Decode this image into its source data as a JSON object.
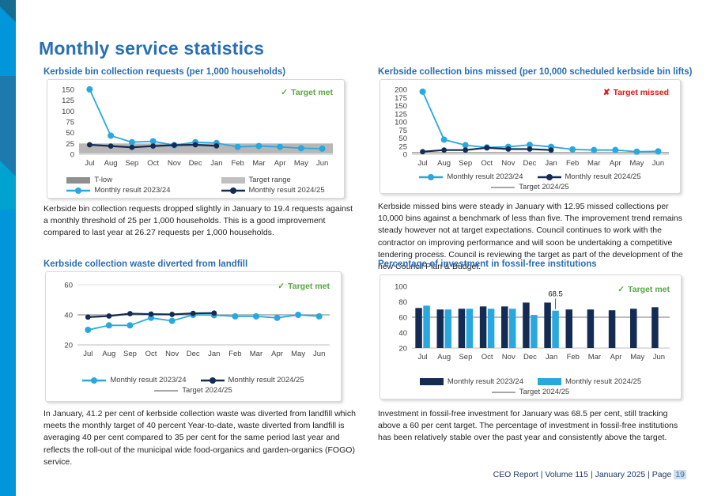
{
  "page": {
    "title": "Monthly service statistics",
    "footer_label": "CEO Report | Volume 115 | January 2025 | Page",
    "footer_page": "19"
  },
  "colors": {
    "heading_blue": "#2a6eb5",
    "series_2023_24": "#29a8e0",
    "series_2024_25": "#142c54",
    "target_gray": "#a6a6a6",
    "target_range_gray": "#b7b7b7",
    "t_low_gray": "#8f8f8f",
    "target_met_green": "#5ba644",
    "target_missed_red": "#e81313",
    "left_band_blue": "#0096d9"
  },
  "chart_data": [
    {
      "id": "kerbside-requests",
      "type": "line",
      "title": "Kerbside bin collection requests (per 1,000 households)",
      "status": {
        "icon": "✓",
        "label": "Target met",
        "type": "met"
      },
      "categories": [
        "Jul",
        "Aug",
        "Sep",
        "Oct",
        "Nov",
        "Dec",
        "Jan",
        "Feb",
        "Mar",
        "Apr",
        "May",
        "Jun"
      ],
      "series": [
        {
          "name": "Monthly result 2023/24",
          "color": "#29a8e0",
          "values": [
            150,
            43,
            28,
            30,
            21,
            28,
            26,
            17,
            19,
            17,
            14,
            13
          ]
        },
        {
          "name": "Monthly result 2024/25",
          "color": "#142c54",
          "values": [
            22,
            19,
            16,
            19,
            21,
            22,
            19.4,
            null,
            null,
            null,
            null,
            null
          ]
        }
      ],
      "band": {
        "label": "Target range",
        "from": 2,
        "to": 25,
        "color": "#b7b7b7"
      },
      "ylim": [
        0,
        150
      ],
      "yticks": [
        0,
        25,
        50,
        75,
        100,
        125,
        150
      ],
      "grid": false,
      "legend_layout": "two-rows",
      "legend": [
        {
          "label": "T-low",
          "swatch": "band",
          "color": "#8f8f8f"
        },
        {
          "label": "Target range",
          "swatch": "band",
          "color": "#bfbfbf"
        },
        {
          "label": "Monthly result 2023/24",
          "swatch": "line-marker",
          "color": "#29a8e0"
        },
        {
          "label": "Monthly result 2024/25",
          "swatch": "line-marker",
          "color": "#142c54"
        }
      ],
      "commentary": "Kerbside bin collection requests dropped slightly in January to 19.4 requests against a monthly threshold of 25 per 1,000 households. This is a good improvement compared to last year at 26.27 requests per 1,000 households."
    },
    {
      "id": "bins-missed",
      "type": "line",
      "title": "Kerbside collection bins missed (per 10,000 scheduled kerbside bin lifts)",
      "status": {
        "icon": "✘",
        "label": "Target missed",
        "type": "missed"
      },
      "categories": [
        "Jul",
        "Aug",
        "Sep",
        "Oct",
        "Nov",
        "Dec",
        "Jan",
        "Feb",
        "Mar",
        "Apr",
        "May",
        "Jun"
      ],
      "series": [
        {
          "name": "Monthly result 2023/24",
          "color": "#29a8e0",
          "values": [
            193,
            45,
            28,
            21,
            23,
            29,
            23,
            15,
            13,
            13,
            8,
            9
          ]
        },
        {
          "name": "Monthly result 2024/25",
          "color": "#142c54",
          "values": [
            8,
            13,
            13,
            20,
            16,
            16,
            12.95,
            null,
            null,
            null,
            null,
            null
          ]
        }
      ],
      "target": {
        "label": "Target 2024/25",
        "value": 5,
        "color": "#a6a6a6"
      },
      "ylim": [
        0,
        200
      ],
      "yticks": [
        0,
        25,
        50,
        75,
        100,
        125,
        150,
        175,
        200
      ],
      "grid": false,
      "legend_layout": "row",
      "legend": [
        {
          "label": "Monthly result 2023/24",
          "swatch": "line-marker",
          "color": "#29a8e0"
        },
        {
          "label": "Monthly result 2024/25",
          "swatch": "line-marker",
          "color": "#142c54"
        },
        {
          "label": "Target 2024/25",
          "swatch": "line",
          "color": "#a6a6a6"
        }
      ],
      "commentary": "Kerbside missed bins were steady in January with 12.95 missed collections per 10,000 bins against a benchmark of less than five. The improvement trend remains steady however not at target expectations. Council continues to work with the contractor on improving performance and will soon be undertaking a competitive tendering process. Council is reviewing the target as part of the development of the new Council Plan & Budget."
    },
    {
      "id": "waste-diverted",
      "type": "line",
      "title": "Kerbside collection waste diverted from landfill",
      "status": {
        "icon": "✓",
        "label": "Target met",
        "type": "met"
      },
      "categories": [
        "Jul",
        "Aug",
        "Sep",
        "Oct",
        "Nov",
        "Dec",
        "Jan",
        "Feb",
        "Mar",
        "Apr",
        "May",
        "Jun"
      ],
      "series": [
        {
          "name": "Monthly result 2023/24",
          "color": "#29a8e0",
          "values": [
            30,
            33,
            33,
            38,
            36,
            40,
            39.8,
            39,
            39,
            38,
            40,
            39
          ]
        },
        {
          "name": "Monthly result 2024/25",
          "color": "#142c54",
          "values": [
            38.5,
            39.2,
            40.8,
            40.5,
            40.3,
            41,
            41.2,
            null,
            null,
            null,
            null,
            null
          ]
        }
      ],
      "target": {
        "label": "Target 2024/25",
        "value": 40,
        "color": "#a6a6a6"
      },
      "ylim": [
        20,
        60
      ],
      "yticks": [
        20,
        40,
        60
      ],
      "grid": true,
      "legend_layout": "row",
      "legend": [
        {
          "label": "Monthly result 2023/24",
          "swatch": "line-marker",
          "color": "#29a8e0"
        },
        {
          "label": "Monthly result 2024/25",
          "swatch": "line-marker",
          "color": "#142c54"
        },
        {
          "label": "Target 2024/25",
          "swatch": "line",
          "color": "#a6a6a6"
        }
      ],
      "commentary": "In January, 41.2 per cent of kerbside collection waste was diverted from landfill which meets the monthly target of 40 percent Year-to-date, waste diverted from landfill is averaging 40 per cent compared to 35 per cent for the same period last year and reflects the roll-out of the municipal wide food-organics and garden-organics (FOGO) service."
    },
    {
      "id": "fossil-free-investment",
      "type": "bar",
      "title": "Percentage of investment in fossil-free institutions",
      "status": {
        "icon": "✓",
        "label": "Target met",
        "type": "met"
      },
      "categories": [
        "Jul",
        "Aug",
        "Sep",
        "Oct",
        "Nov",
        "Dec",
        "Jan",
        "Feb",
        "Mar",
        "Apr",
        "May",
        "Jun"
      ],
      "series": [
        {
          "name": "Monthly result 2023/24",
          "color": "#142c54",
          "values": [
            72,
            70,
            71,
            74,
            74,
            79,
            79,
            70,
            70,
            69,
            71,
            73
          ]
        },
        {
          "name": "Monthly result 2024/25",
          "color": "#29a8e0",
          "values": [
            75,
            70,
            71,
            71,
            71,
            63,
            68.5,
            null,
            null,
            null,
            null,
            null
          ]
        }
      ],
      "target": {
        "label": "Target 2024/25",
        "value": 60,
        "color": "#a6a6a6"
      },
      "ylim": [
        20,
        100
      ],
      "yticks": [
        20,
        40,
        60,
        80,
        100
      ],
      "grid": false,
      "annotations": [
        {
          "series": "Monthly result 2024/25",
          "category": "Jan",
          "label": "68.5"
        }
      ],
      "legend_layout": "row",
      "legend": [
        {
          "label": "Monthly result 2023/24",
          "swatch": "bar",
          "color": "#142c54"
        },
        {
          "label": "Monthly result 2024/25",
          "swatch": "bar",
          "color": "#29a8e0"
        },
        {
          "label": "Target 2024/25",
          "swatch": "line",
          "color": "#a6a6a6"
        }
      ],
      "commentary": "Investment in fossil-free investment for January was 68.5 per cent, still tracking above a 60 per cent target. The percentage of investment in fossil-free institutions has been relatively stable over the past year and consistently above the target."
    }
  ]
}
